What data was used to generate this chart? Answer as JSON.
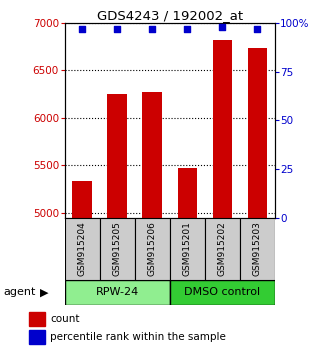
{
  "title": "GDS4243 / 192002_at",
  "categories": [
    "GSM915204",
    "GSM915205",
    "GSM915206",
    "GSM915201",
    "GSM915202",
    "GSM915203"
  ],
  "counts": [
    5340,
    6250,
    6270,
    5470,
    6820,
    6740
  ],
  "percentile_ranks": [
    97,
    97,
    97,
    97,
    98,
    97
  ],
  "bar_color": "#cc0000",
  "dot_color": "#0000cc",
  "ylim_left": [
    4950,
    7000
  ],
  "ylim_right": [
    0,
    100
  ],
  "yticks_left": [
    5000,
    5500,
    6000,
    6500,
    7000
  ],
  "yticks_right": [
    0,
    25,
    50,
    75,
    100
  ],
  "ytick_labels_right": [
    "0",
    "25",
    "50",
    "75",
    "100%"
  ],
  "groups": [
    {
      "label": "RPW-24",
      "indices": [
        0,
        1,
        2
      ],
      "color": "#90ee90"
    },
    {
      "label": "DMSO control",
      "indices": [
        3,
        4,
        5
      ],
      "color": "#33cc33"
    }
  ],
  "legend_count_label": "count",
  "legend_percentile_label": "percentile rank within the sample",
  "bar_width": 0.55,
  "ylabel_left_color": "#cc0000",
  "ylabel_right_color": "#0000cc"
}
